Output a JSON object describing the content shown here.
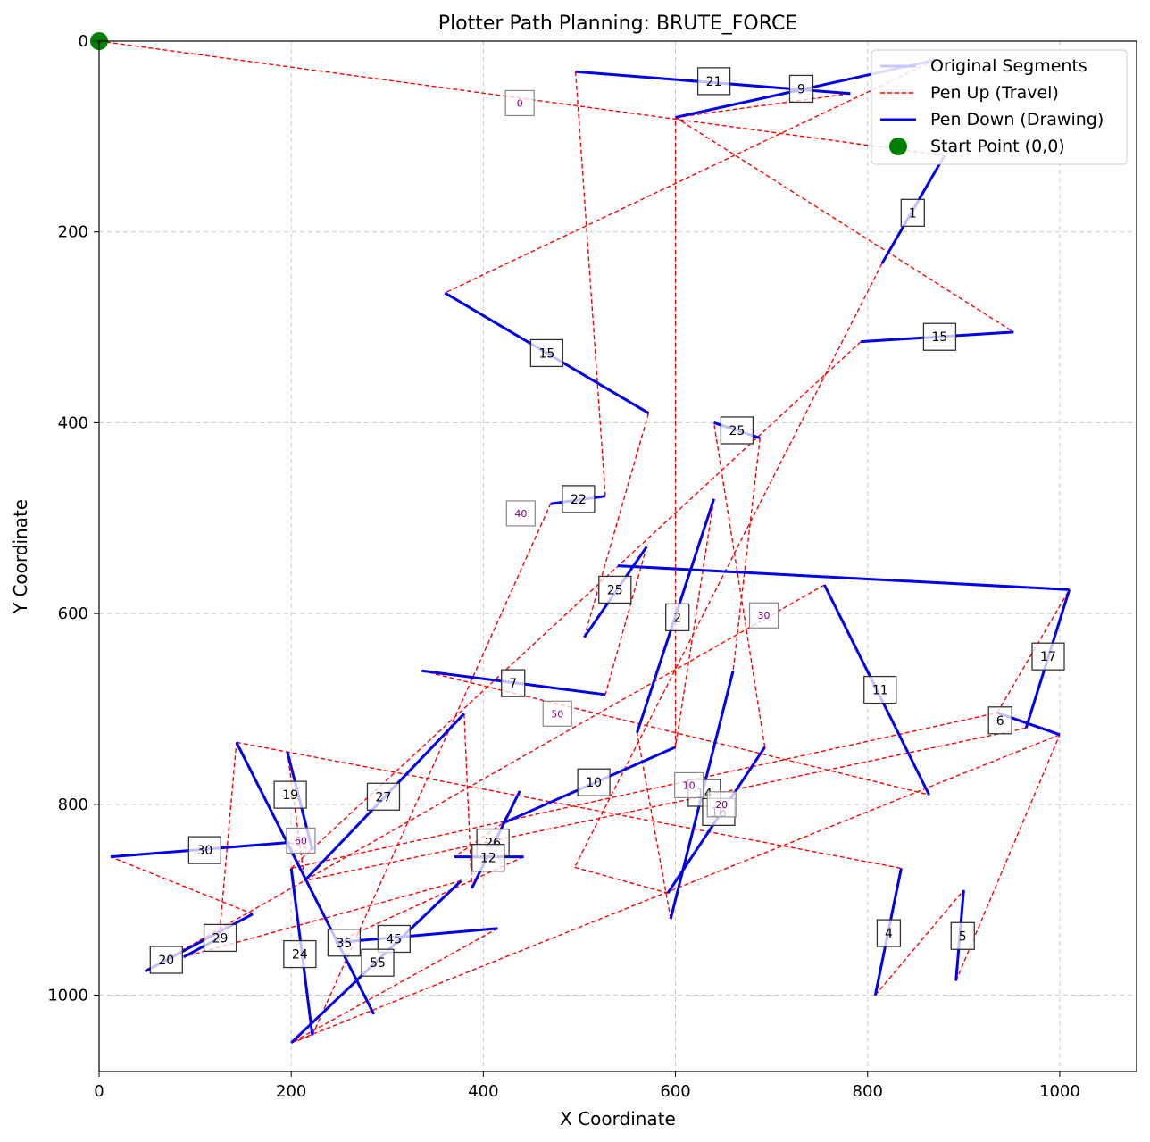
{
  "chart_data": {
    "type": "line",
    "title": "Plotter Path Planning: BRUTE_FORCE",
    "xlabel": "X Coordinate",
    "ylabel": "Y Coordinate",
    "xlim": [
      0,
      1080
    ],
    "ylim": [
      1080,
      0
    ],
    "y_inverted": true,
    "grid": true,
    "xticks": [
      0,
      200,
      400,
      600,
      800,
      1000
    ],
    "yticks": [
      0,
      200,
      400,
      600,
      800,
      1000
    ],
    "legend_position": "top-right",
    "legend": [
      {
        "label": "Original Segments",
        "kind": "line",
        "color": "#c8c8ff"
      },
      {
        "label": "Pen Up (Travel)",
        "kind": "dashed",
        "color": "#ff0000"
      },
      {
        "label": "Pen Down (Drawing)",
        "kind": "line",
        "color": "#0000ee"
      },
      {
        "label": "Start Point (0,0)",
        "kind": "dot",
        "color": "#008000"
      }
    ],
    "start_point": [
      0,
      0
    ],
    "colors": {
      "draw": "#0000ee",
      "travel": "#ff0000",
      "start": "#008000",
      "grid": "#b0b0b0",
      "label_text": "#800080"
    },
    "drawing_segments": [
      [
        [
          496,
          32
        ],
        [
          782,
          55
        ]
      ],
      [
        [
          815,
          233
        ],
        [
          880,
          120
        ]
      ],
      [
        [
          560,
          725
        ],
        [
          640,
          480
        ]
      ],
      [
        [
          808,
          1000
        ],
        [
          835,
          867
        ]
      ],
      [
        [
          892,
          985
        ],
        [
          900,
          890
        ]
      ],
      [
        [
          935,
          704
        ],
        [
          1000,
          727
        ]
      ],
      [
        [
          336,
          660
        ],
        [
          527,
          685
        ]
      ],
      [
        [
          600,
          80
        ],
        [
          870,
          20
        ]
      ],
      [
        [
          540,
          550
        ],
        [
          1010,
          575
        ]
      ],
      [
        [
          420,
          820
        ],
        [
          600,
          740
        ]
      ],
      [
        [
          755,
          570
        ],
        [
          864,
          790
        ]
      ],
      [
        [
          370,
          855
        ],
        [
          442,
          855
        ]
      ],
      [
        [
          640,
          400
        ],
        [
          688,
          416
        ]
      ],
      [
        [
          595,
          920
        ],
        [
          660,
          660
        ]
      ],
      [
        [
          793,
          315
        ],
        [
          952,
          305
        ]
      ],
      [
        [
          592,
          893
        ],
        [
          693,
          740
        ]
      ],
      [
        [
          965,
          720
        ],
        [
          1010,
          575
        ]
      ],
      [
        [
          196,
          745
        ],
        [
          222,
          848
        ]
      ],
      [
        [
          12,
          855
        ],
        [
          198,
          840
        ]
      ],
      [
        [
          48,
          975
        ],
        [
          160,
          915
        ]
      ],
      [
        [
          470,
          485
        ],
        [
          527,
          477
        ]
      ],
      [
        [
          360,
          264
        ],
        [
          572,
          390
        ]
      ],
      [
        [
          200,
          1050
        ],
        [
          377,
          880
        ]
      ],
      [
        [
          505,
          625
        ],
        [
          570,
          530
        ]
      ],
      [
        [
          388,
          888
        ],
        [
          438,
          786
        ]
      ],
      [
        [
          214,
          880
        ],
        [
          380,
          705
        ]
      ],
      [
        [
          200,
          867
        ],
        [
          222,
          1042
        ]
      ],
      [
        [
          88,
          960
        ],
        [
          125,
          940
        ]
      ],
      [
        [
          143,
          735
        ],
        [
          286,
          1020
        ]
      ],
      [
        [
          246,
          945
        ],
        [
          415,
          930
        ]
      ]
    ],
    "travel_path": [
      [
        0,
        0
      ],
      [
        880,
        120
      ],
      [
        815,
        233
      ],
      [
        495,
        866
      ],
      [
        592,
        893
      ],
      [
        693,
        740
      ],
      [
        640,
        400
      ],
      [
        688,
        416
      ],
      [
        660,
        660
      ],
      [
        595,
        920
      ],
      [
        560,
        725
      ],
      [
        640,
        480
      ],
      [
        600,
        740
      ],
      [
        600,
        80
      ],
      [
        870,
        20
      ],
      [
        360,
        264
      ],
      [
        572,
        390
      ],
      [
        505,
        625
      ],
      [
        570,
        530
      ],
      [
        527,
        685
      ],
      [
        336,
        660
      ],
      [
        864,
        790
      ],
      [
        755,
        570
      ],
      [
        48,
        975
      ],
      [
        160,
        915
      ],
      [
        12,
        855
      ],
      [
        198,
        840
      ],
      [
        222,
        848
      ],
      [
        196,
        745
      ],
      [
        214,
        880
      ],
      [
        380,
        705
      ],
      [
        388,
        888
      ],
      [
        438,
        786
      ],
      [
        420,
        820
      ],
      [
        370,
        855
      ],
      [
        442,
        855
      ],
      [
        246,
        945
      ],
      [
        415,
        930
      ],
      [
        200,
        1050
      ],
      [
        377,
        880
      ],
      [
        88,
        960
      ],
      [
        125,
        940
      ],
      [
        143,
        735
      ],
      [
        835,
        867
      ],
      [
        808,
        1000
      ],
      [
        900,
        890
      ],
      [
        892,
        985
      ],
      [
        1000,
        727
      ],
      [
        200,
        1050
      ],
      [
        222,
        1042
      ],
      [
        470,
        485
      ],
      [
        527,
        477
      ],
      [
        496,
        32
      ],
      [
        782,
        55
      ],
      [
        600,
        80
      ],
      [
        952,
        305
      ],
      [
        793,
        315
      ],
      [
        200,
        867
      ],
      [
        935,
        704
      ],
      [
        1010,
        575
      ],
      [
        965,
        720
      ],
      [
        214,
        880
      ]
    ],
    "segment_labels": [
      {
        "text": "21",
        "x": 640,
        "y": 42
      },
      {
        "text": "9",
        "x": 731,
        "y": 50
      },
      {
        "text": "1",
        "x": 847,
        "y": 180
      },
      {
        "text": "15",
        "x": 875,
        "y": 310
      },
      {
        "text": "15",
        "x": 466,
        "y": 327
      },
      {
        "text": "25",
        "x": 664,
        "y": 408
      },
      {
        "text": "22",
        "x": 499,
        "y": 480
      },
      {
        "text": "25",
        "x": 537,
        "y": 575
      },
      {
        "text": "2",
        "x": 602,
        "y": 604
      },
      {
        "text": "17",
        "x": 988,
        "y": 645
      },
      {
        "text": "7",
        "x": 431,
        "y": 673
      },
      {
        "text": "11",
        "x": 813,
        "y": 680
      },
      {
        "text": "6",
        "x": 938,
        "y": 712
      },
      {
        "text": "10",
        "x": 515,
        "y": 777
      },
      {
        "text": "14",
        "x": 630,
        "y": 788
      },
      {
        "text": "16",
        "x": 645,
        "y": 808
      },
      {
        "text": "19",
        "x": 199,
        "y": 790
      },
      {
        "text": "27",
        "x": 296,
        "y": 792
      },
      {
        "text": "26",
        "x": 410,
        "y": 840
      },
      {
        "text": "12",
        "x": 405,
        "y": 856
      },
      {
        "text": "30",
        "x": 110,
        "y": 848
      },
      {
        "text": "29",
        "x": 126,
        "y": 940
      },
      {
        "text": "4",
        "x": 822,
        "y": 935
      },
      {
        "text": "5",
        "x": 899,
        "y": 938
      },
      {
        "text": "35",
        "x": 255,
        "y": 945
      },
      {
        "text": "45",
        "x": 307,
        "y": 941
      },
      {
        "text": "24",
        "x": 209,
        "y": 957
      },
      {
        "text": "20",
        "x": 70,
        "y": 963
      },
      {
        "text": "55",
        "x": 290,
        "y": 966
      }
    ],
    "travel_labels": [
      {
        "text": "0",
        "x": 438,
        "y": 65
      },
      {
        "text": "40",
        "x": 439,
        "y": 495
      },
      {
        "text": "30",
        "x": 692,
        "y": 602
      },
      {
        "text": "50",
        "x": 477,
        "y": 705
      },
      {
        "text": "10",
        "x": 614,
        "y": 780
      },
      {
        "text": "20",
        "x": 648,
        "y": 800
      },
      {
        "text": "60",
        "x": 210,
        "y": 838
      }
    ]
  }
}
